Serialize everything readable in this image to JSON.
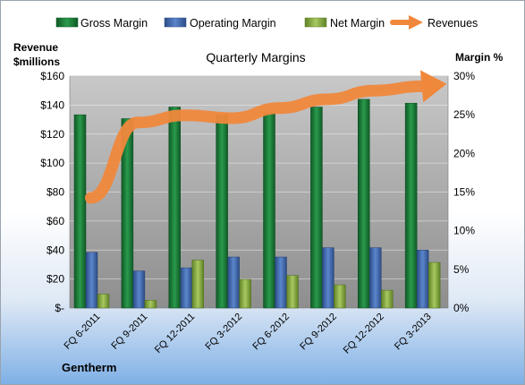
{
  "chart_data": {
    "type": "bar",
    "title": "Quarterly Margins",
    "company": "Gentherm",
    "left_axis_label": [
      "Revenue",
      "$millions"
    ],
    "right_axis_label": "Margin %",
    "categories": [
      "FQ 6-2011",
      "FQ 9-2011",
      "FQ 12-2011",
      "FQ 3-2012",
      "FQ 6-2012",
      "FQ 9-2012",
      "FQ 12-2012",
      "FQ 3-2013"
    ],
    "left_axis": {
      "min": 0,
      "max": 160,
      "ticks": [
        "$-",
        "$20",
        "$40",
        "$60",
        "$80",
        "$100",
        "$120",
        "$140",
        "$160"
      ]
    },
    "right_axis": {
      "min": 0,
      "max": 30,
      "ticks": [
        "0%",
        "5%",
        "10%",
        "15%",
        "20%",
        "25%",
        "30%"
      ]
    },
    "series": [
      {
        "name": "Gross Margin",
        "axis": "right",
        "kind": "bar",
        "color": "#1e7a3c",
        "values": [
          25.0,
          24.5,
          26.0,
          25.0,
          25.2,
          26.0,
          27.0,
          26.5
        ]
      },
      {
        "name": "Operating Margin",
        "axis": "right",
        "kind": "bar",
        "color": "#4a6fb0",
        "values": [
          7.2,
          4.8,
          5.2,
          6.6,
          6.6,
          7.8,
          7.8,
          7.5
        ]
      },
      {
        "name": "Net Margin",
        "axis": "right",
        "kind": "bar",
        "color": "#8db04a",
        "values": [
          1.8,
          1.0,
          6.2,
          3.7,
          4.2,
          3.0,
          2.3,
          5.9
        ]
      },
      {
        "name": "Revenues",
        "axis": "left",
        "kind": "line",
        "color": "#f0883c",
        "values": [
          76,
          128,
          133,
          131,
          138,
          144,
          150,
          153
        ]
      }
    ],
    "legend_position": "top",
    "grid": true
  }
}
